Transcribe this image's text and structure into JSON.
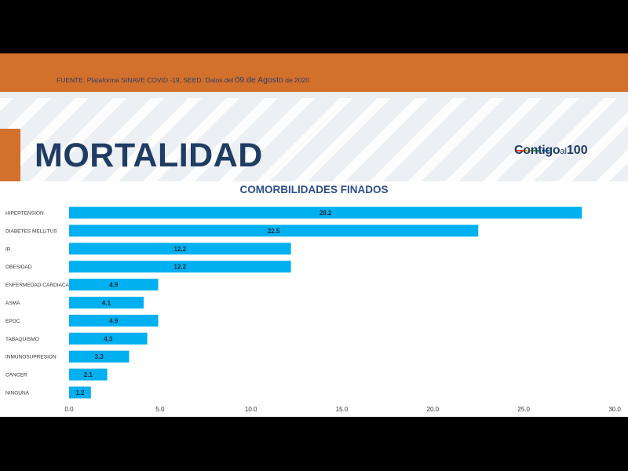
{
  "header": {
    "source_text": "FUENTE. Plataforma SINAVE COVID -19, SEED. Datos del",
    "source_date": "09 de Agosto",
    "source_year": "de 2020"
  },
  "page_title": "MORTALIDAD",
  "logo": {
    "part1": "Contigo",
    "part2": "al",
    "part3": "100"
  },
  "colors": {
    "accent_orange": "#d2702c",
    "title_navy": "#1f3c63",
    "bar": "#00b0f0"
  },
  "chart_data": {
    "type": "bar",
    "orientation": "horizontal",
    "title": "COMORBILIDADES FINADOS",
    "categories": [
      "HIPERTENSION",
      "DIABETES MELLITUS",
      "IR",
      "OBESIDAD",
      "ENFERMEDAD CARDIACA",
      "ASMA",
      "EPOC",
      "TABAQUISMO",
      "INMUNOSUPRESION",
      "CANCER",
      "NINGUNA"
    ],
    "values": [
      28.2,
      22.5,
      12.2,
      12.2,
      4.9,
      4.1,
      4.9,
      4.3,
      3.3,
      2.1,
      1.2
    ],
    "value_labels": [
      "28.2",
      "22.5",
      "12.2",
      "12.2",
      "4.9",
      "4.1",
      "4.9",
      "4.3",
      "3.3",
      "2.1",
      "1.2"
    ],
    "xlim": [
      0,
      30
    ],
    "xticks": [
      "0.0",
      "5.0",
      "10.0",
      "15.0",
      "20.0",
      "25.0",
      "30.0"
    ],
    "grid": false,
    "legend": "none"
  }
}
